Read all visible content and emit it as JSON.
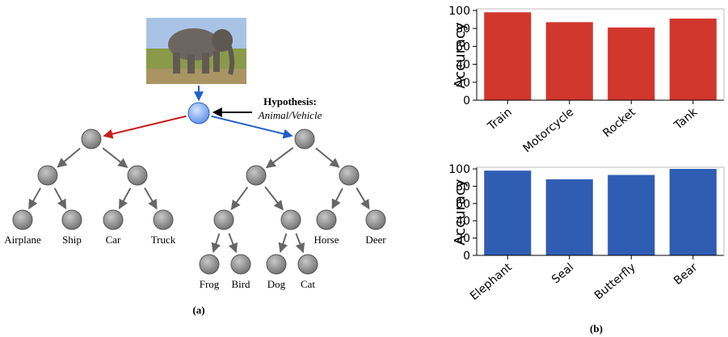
{
  "figure": {
    "panel_a": {
      "hypothesis_title": "Hypothesis:",
      "hypothesis_options": "Animal/Vehicle",
      "leaves": [
        "Airplane",
        "Ship",
        "Car",
        "Truck",
        "Frog",
        "Bird",
        "Dog",
        "Cat",
        "Horse",
        "Deer"
      ],
      "caption": "(a)"
    },
    "panel_b": {
      "caption": "(b)"
    }
  },
  "chart_data": [
    {
      "type": "bar",
      "ylabel": "Accuracy",
      "categories": [
        "Train",
        "Motorcycle",
        "Rocket",
        "Tank"
      ],
      "values": [
        98,
        87,
        81,
        91
      ],
      "color": "#d1372c",
      "ylim": [
        0,
        100
      ],
      "yticks": [
        0,
        20,
        40,
        60,
        80,
        100
      ]
    },
    {
      "type": "bar",
      "ylabel": "Accuracy",
      "categories": [
        "Elephant",
        "Seal",
        "Butterfly",
        "Bear"
      ],
      "values": [
        98,
        88,
        93,
        100
      ],
      "color": "#2f5db4",
      "ylim": [
        0,
        100
      ],
      "yticks": [
        0,
        20,
        40,
        60,
        80,
        100
      ]
    }
  ]
}
